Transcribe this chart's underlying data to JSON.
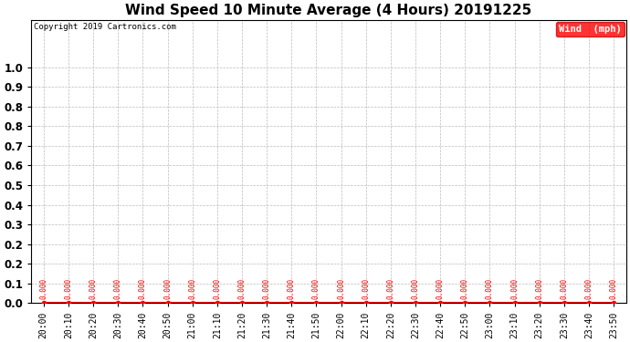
{
  "title": "Wind Speed 10 Minute Average (4 Hours) 20191225",
  "copyright_text": "Copyright 2019 Cartronics.com",
  "legend_label": "Wind  (mph)",
  "legend_bg": "#ff0000",
  "legend_text_color": "#ffffff",
  "x_labels": [
    "20:00",
    "20:10",
    "20:20",
    "20:30",
    "20:40",
    "20:50",
    "21:00",
    "21:10",
    "21:20",
    "21:30",
    "21:40",
    "21:50",
    "22:00",
    "22:10",
    "22:20",
    "22:30",
    "22:40",
    "22:50",
    "23:00",
    "23:10",
    "23:20",
    "23:30",
    "23:40",
    "23:50"
  ],
  "y_values": [
    0.0,
    0.0,
    0.0,
    0.0,
    0.0,
    0.0,
    0.0,
    0.0,
    0.0,
    0.0,
    0.0,
    0.0,
    0.0,
    0.0,
    0.0,
    0.0,
    0.0,
    0.0,
    0.0,
    0.0,
    0.0,
    0.0,
    0.0,
    0.0
  ],
  "line_color": "#ff0000",
  "marker_color": "#ff0000",
  "ylim": [
    0.0,
    1.2
  ],
  "ytick_labels": [
    "0.0",
    "0.1",
    "0.2",
    "0.2",
    "0.3",
    "0.4",
    "0.5",
    "0.6",
    "0.7",
    "0.8",
    "0.9",
    "1.0",
    ""
  ],
  "bg_color": "#ffffff",
  "grid_color": "#bbbbbb",
  "title_fontsize": 11,
  "annotation_fontsize": 5.5,
  "annotation_color": "#ff0000",
  "tick_fontsize": 8.5,
  "xtick_fontsize": 7
}
